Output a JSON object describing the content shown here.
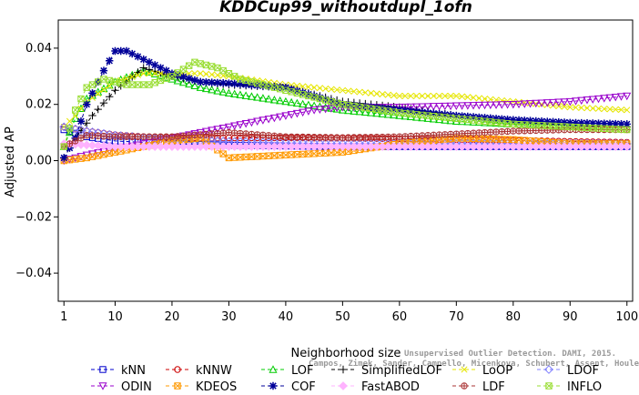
{
  "chart_data": {
    "type": "line",
    "title": "KDDCup99_withoutdupl_1ofn",
    "xlabel": "Neighborhood size",
    "ylabel": "Adjusted AP",
    "xlim": [
      0,
      101
    ],
    "ylim": [
      -0.05,
      0.05
    ],
    "x_ticks": [
      1,
      10,
      20,
      30,
      40,
      50,
      60,
      70,
      80,
      90,
      100
    ],
    "y_ticks": [
      -0.04,
      -0.02,
      0.0,
      0.02,
      0.04
    ],
    "y_tick_labels": [
      "−0.04",
      "−0.02",
      "0.00",
      "0.02",
      "0.04"
    ],
    "legend_position": "bottom",
    "grid": false,
    "series": [
      {
        "name": "kNN",
        "color": "#0000cc",
        "marker": "square",
        "dash": "4,3",
        "points": [
          [
            1,
            0.011
          ],
          [
            5,
            0.0085
          ],
          [
            10,
            0.007
          ],
          [
            15,
            0.0065
          ],
          [
            20,
            0.006
          ],
          [
            30,
            0.0055
          ],
          [
            40,
            0.0052
          ],
          [
            50,
            0.005
          ],
          [
            60,
            0.005
          ],
          [
            70,
            0.005
          ],
          [
            80,
            0.005
          ],
          [
            90,
            0.005
          ],
          [
            100,
            0.005
          ]
        ]
      },
      {
        "name": "kNNW",
        "color": "#cc0000",
        "marker": "circle",
        "dash": "4,3",
        "points": [
          [
            1,
            0.012
          ],
          [
            5,
            0.0105
          ],
          [
            10,
            0.0092
          ],
          [
            15,
            0.0085
          ],
          [
            20,
            0.0082
          ],
          [
            30,
            0.0081
          ],
          [
            40,
            0.0081
          ],
          [
            50,
            0.008
          ],
          [
            60,
            0.0078
          ],
          [
            70,
            0.0075
          ],
          [
            80,
            0.0072
          ],
          [
            90,
            0.0068
          ],
          [
            100,
            0.0065
          ]
        ]
      },
      {
        "name": "LOF",
        "color": "#00cc00",
        "marker": "triangle-up",
        "dash": "4,3",
        "points": [
          [
            1,
            0.005
          ],
          [
            3,
            0.015
          ],
          [
            5,
            0.022
          ],
          [
            10,
            0.028
          ],
          [
            15,
            0.032
          ],
          [
            20,
            0.029
          ],
          [
            25,
            0.026
          ],
          [
            30,
            0.024
          ],
          [
            40,
            0.021
          ],
          [
            50,
            0.018
          ],
          [
            60,
            0.016
          ],
          [
            70,
            0.014
          ],
          [
            80,
            0.013
          ],
          [
            90,
            0.0125
          ],
          [
            100,
            0.012
          ]
        ]
      },
      {
        "name": "SimplifiedLOF",
        "color": "#000000",
        "marker": "plus",
        "dash": "4,3",
        "points": [
          [
            1,
            0.001
          ],
          [
            3,
            0.008
          ],
          [
            6,
            0.016
          ],
          [
            10,
            0.025
          ],
          [
            15,
            0.033
          ],
          [
            20,
            0.03
          ],
          [
            25,
            0.028
          ],
          [
            30,
            0.027
          ],
          [
            40,
            0.026
          ],
          [
            50,
            0.021
          ],
          [
            60,
            0.019
          ],
          [
            70,
            0.016
          ],
          [
            80,
            0.014
          ],
          [
            90,
            0.0125
          ],
          [
            100,
            0.012
          ]
        ]
      },
      {
        "name": "LoOP",
        "color": "#e6e600",
        "marker": "cross",
        "dash": "4,3",
        "points": [
          [
            1,
            0.012
          ],
          [
            3,
            0.016
          ],
          [
            5,
            0.021
          ],
          [
            10,
            0.028
          ],
          [
            15,
            0.031
          ],
          [
            20,
            0.031
          ],
          [
            25,
            0.031
          ],
          [
            30,
            0.03
          ],
          [
            40,
            0.027
          ],
          [
            50,
            0.025
          ],
          [
            60,
            0.023
          ],
          [
            70,
            0.023
          ],
          [
            80,
            0.021
          ],
          [
            90,
            0.019
          ],
          [
            100,
            0.018
          ]
        ]
      },
      {
        "name": "LDOF",
        "color": "#8080ff",
        "marker": "diamond",
        "dash": "4,3",
        "points": [
          [
            1,
            0.012
          ],
          [
            5,
            0.0105
          ],
          [
            10,
            0.009
          ],
          [
            20,
            0.0075
          ],
          [
            30,
            0.0068
          ],
          [
            40,
            0.0064
          ],
          [
            50,
            0.006
          ],
          [
            60,
            0.006
          ],
          [
            70,
            0.006
          ],
          [
            80,
            0.006
          ],
          [
            90,
            0.006
          ],
          [
            100,
            0.006
          ]
        ]
      },
      {
        "name": "ODIN",
        "color": "#9900cc",
        "marker": "triangle-down",
        "dash": "4,3",
        "points": [
          [
            1,
            0.0
          ],
          [
            5,
            0.002
          ],
          [
            10,
            0.004
          ],
          [
            15,
            0.006
          ],
          [
            20,
            0.008
          ],
          [
            25,
            0.01
          ],
          [
            30,
            0.012
          ],
          [
            35,
            0.014
          ],
          [
            40,
            0.016
          ],
          [
            45,
            0.018
          ],
          [
            50,
            0.019
          ],
          [
            60,
            0.019
          ],
          [
            70,
            0.0195
          ],
          [
            80,
            0.02
          ],
          [
            90,
            0.021
          ],
          [
            100,
            0.023
          ]
        ]
      },
      {
        "name": "KDEOS",
        "color": "#ff9900",
        "marker": "square-x",
        "dash": "4,3",
        "points": [
          [
            1,
            0.0
          ],
          [
            5,
            0.001
          ],
          [
            10,
            0.003
          ],
          [
            15,
            0.005
          ],
          [
            20,
            0.007
          ],
          [
            25,
            0.008
          ],
          [
            30,
            0.001
          ],
          [
            35,
            0.0015
          ],
          [
            40,
            0.002
          ],
          [
            50,
            0.003
          ],
          [
            60,
            0.006
          ],
          [
            70,
            0.008
          ],
          [
            80,
            0.0075
          ],
          [
            90,
            0.006
          ],
          [
            100,
            0.006
          ]
        ]
      },
      {
        "name": "COF",
        "color": "#000099",
        "marker": "asterisk",
        "dash": "4,3",
        "points": [
          [
            1,
            0.001
          ],
          [
            3,
            0.008
          ],
          [
            5,
            0.02
          ],
          [
            8,
            0.032
          ],
          [
            10,
            0.039
          ],
          [
            12,
            0.039
          ],
          [
            15,
            0.036
          ],
          [
            20,
            0.031
          ],
          [
            25,
            0.028
          ],
          [
            30,
            0.0275
          ],
          [
            40,
            0.026
          ],
          [
            50,
            0.02
          ],
          [
            60,
            0.018
          ],
          [
            70,
            0.016
          ],
          [
            80,
            0.0145
          ],
          [
            90,
            0.0135
          ],
          [
            100,
            0.013
          ]
        ]
      },
      {
        "name": "FastABOD",
        "color": "#ffb3ff",
        "marker": "diamond-filled",
        "dash": "4,3",
        "points": [
          [
            1,
            0.006
          ],
          [
            10,
            0.005
          ],
          [
            20,
            0.005
          ],
          [
            30,
            0.005
          ],
          [
            40,
            0.005
          ],
          [
            50,
            0.005
          ],
          [
            60,
            0.005
          ],
          [
            70,
            0.005
          ],
          [
            80,
            0.005
          ],
          [
            90,
            0.005
          ],
          [
            100,
            0.005
          ]
        ]
      },
      {
        "name": "LDF",
        "color": "#aa3333",
        "marker": "circle-plus",
        "dash": "4,3",
        "points": [
          [
            1,
            0.005
          ],
          [
            5,
            0.009
          ],
          [
            10,
            0.0085
          ],
          [
            20,
            0.0085
          ],
          [
            30,
            0.01
          ],
          [
            40,
            0.0085
          ],
          [
            50,
            0.0082
          ],
          [
            60,
            0.0085
          ],
          [
            70,
            0.0095
          ],
          [
            80,
            0.0105
          ],
          [
            90,
            0.011
          ],
          [
            100,
            0.011
          ]
        ]
      },
      {
        "name": "INFLO",
        "color": "#99dd33",
        "marker": "square-x",
        "dash": "4,3",
        "points": [
          [
            1,
            0.005
          ],
          [
            3,
            0.018
          ],
          [
            5,
            0.026
          ],
          [
            8,
            0.029
          ],
          [
            12,
            0.027
          ],
          [
            16,
            0.027
          ],
          [
            20,
            0.03
          ],
          [
            24,
            0.035
          ],
          [
            28,
            0.033
          ],
          [
            32,
            0.029
          ],
          [
            40,
            0.025
          ],
          [
            50,
            0.02
          ],
          [
            60,
            0.017
          ],
          [
            70,
            0.015
          ],
          [
            80,
            0.013
          ],
          [
            90,
            0.012
          ],
          [
            100,
            0.011
          ]
        ]
      }
    ]
  },
  "watermark": {
    "line1": "Unsupervised Outlier Detection. DAMI, 2015.",
    "line2": "Campos, Zimek, Sander, Campello, Micenkova, Schubert, Assent, Houle"
  }
}
